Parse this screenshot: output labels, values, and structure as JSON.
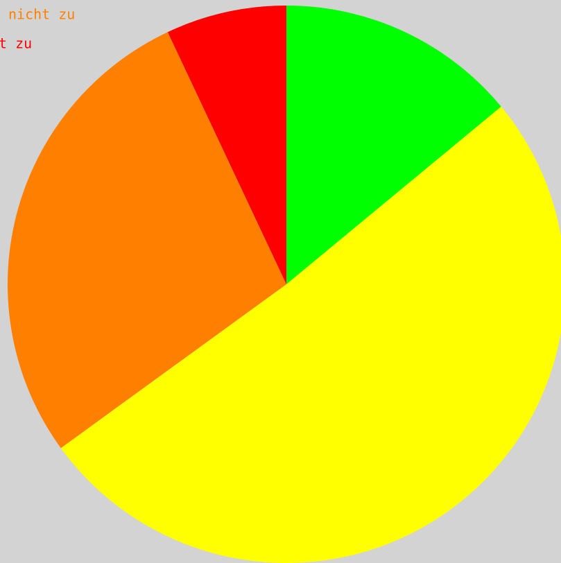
{
  "chart_data": {
    "type": "pie",
    "categories": [
      null,
      null,
      "nicht zu",
      "t zu"
    ],
    "values": [
      14,
      51,
      28,
      7
    ],
    "colors": [
      "#00ff00",
      "#ffff00",
      "#ff8000",
      "#ff0000"
    ]
  }
}
